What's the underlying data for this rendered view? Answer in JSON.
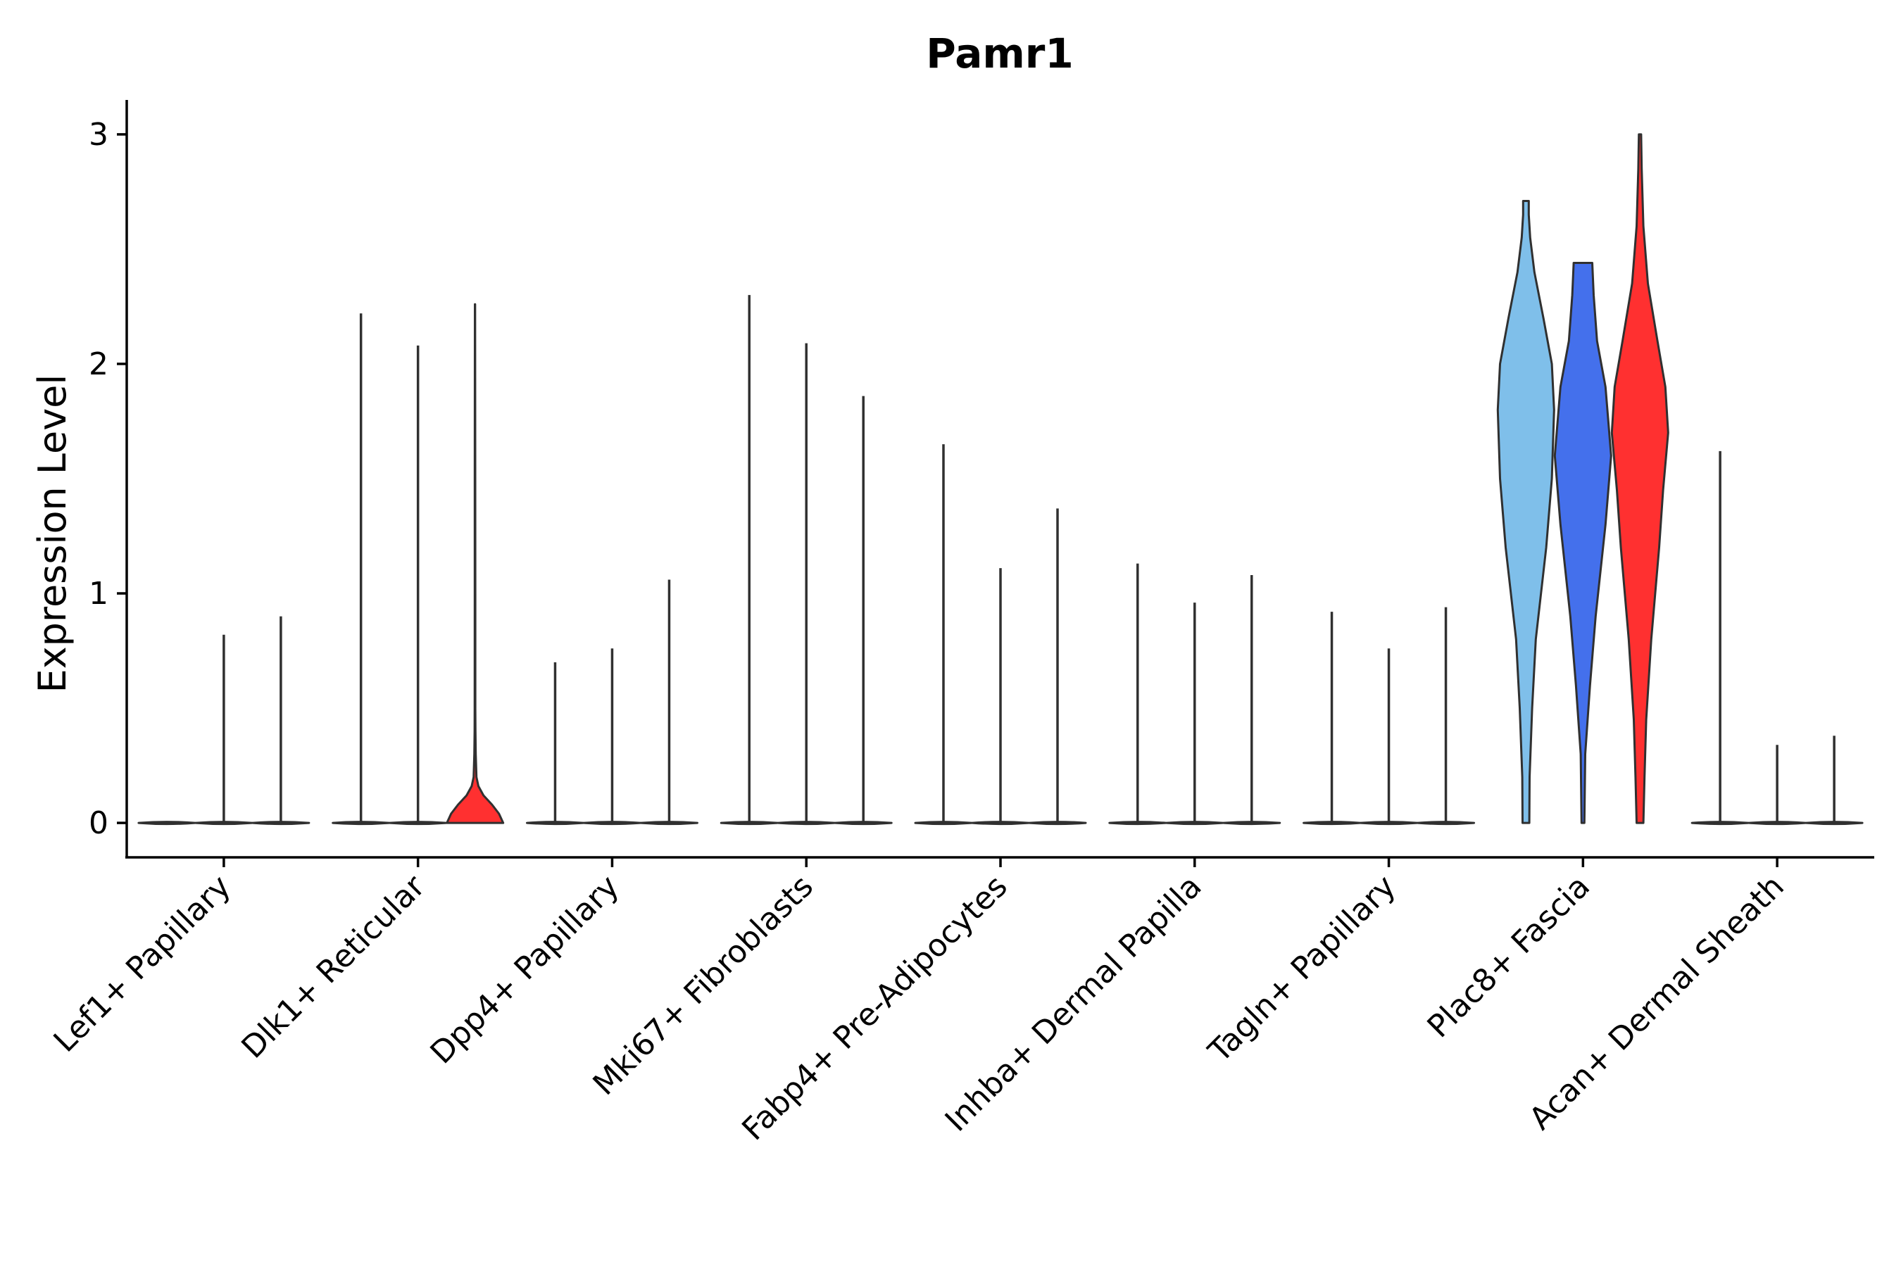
{
  "chart_data": {
    "type": "violin",
    "title": "Pamr1",
    "ylabel": "Expression Level",
    "xlabel": "",
    "ylim": [
      -0.15,
      3.15
    ],
    "yticks": [
      0,
      1,
      2,
      3
    ],
    "grid": false,
    "legend": "none",
    "categories": [
      "Lef1+ Papillary",
      "Dlk1+ Reticular",
      "Dpp4+ Papillary",
      "Mki67+ Fibroblasts",
      "Fabp4+ Pre-Adipocytes",
      "Inhba+ Dermal Papilla",
      "Tagln+ Papillary",
      "Plac8+ Fascia",
      "Acan+ Dermal Sheath"
    ],
    "groups_per_category": 3,
    "series": [
      {
        "color": "#7FBFEA",
        "max": [
          0.0,
          2.22,
          0.7,
          2.3,
          1.65,
          1.13,
          0.92,
          2.71,
          1.62
        ]
      },
      {
        "color": "#4470EC",
        "max": [
          0.82,
          2.08,
          0.76,
          2.09,
          1.11,
          0.96,
          0.76,
          2.44,
          0.34
        ]
      },
      {
        "color": "#FF3030",
        "max": [
          0.9,
          2.26,
          1.06,
          1.86,
          1.37,
          1.08,
          0.94,
          3.0,
          0.38
        ]
      }
    ],
    "distributions": {
      "Dlk1+ Reticular|3": [
        [
          0,
          1.0
        ],
        [
          0.04,
          0.85
        ],
        [
          0.08,
          0.6
        ],
        [
          0.12,
          0.3
        ],
        [
          0.16,
          0.12
        ],
        [
          0.2,
          0.05
        ],
        [
          0.3,
          0.025
        ],
        [
          0.4,
          0.015
        ],
        [
          0.5,
          0.012
        ],
        [
          1.0,
          0.01
        ],
        [
          1.5,
          0.008
        ],
        [
          2.26,
          0.004
        ]
      ],
      "Plac8+ Fascia|1": [
        [
          0,
          0.12
        ],
        [
          0.2,
          0.13
        ],
        [
          0.3,
          0.16
        ],
        [
          0.5,
          0.22
        ],
        [
          0.8,
          0.35
        ],
        [
          1.2,
          0.72
        ],
        [
          1.5,
          0.92
        ],
        [
          1.8,
          1.0
        ],
        [
          2.0,
          0.92
        ],
        [
          2.2,
          0.62
        ],
        [
          2.4,
          0.3
        ],
        [
          2.55,
          0.15
        ],
        [
          2.65,
          0.1
        ],
        [
          2.71,
          0.1
        ]
      ],
      "Plac8+ Fascia|2": [
        [
          0,
          0.05
        ],
        [
          0.3,
          0.08
        ],
        [
          0.6,
          0.25
        ],
        [
          0.9,
          0.45
        ],
        [
          1.3,
          0.8
        ],
        [
          1.6,
          1.0
        ],
        [
          1.9,
          0.8
        ],
        [
          2.1,
          0.5
        ],
        [
          2.3,
          0.38
        ],
        [
          2.44,
          0.33
        ]
      ],
      "Plac8+ Fascia|3": [
        [
          0,
          0.12
        ],
        [
          0.2,
          0.16
        ],
        [
          0.45,
          0.22
        ],
        [
          0.8,
          0.4
        ],
        [
          1.2,
          0.68
        ],
        [
          1.45,
          0.82
        ],
        [
          1.7,
          1.0
        ],
        [
          1.9,
          0.9
        ],
        [
          2.1,
          0.62
        ],
        [
          2.35,
          0.28
        ],
        [
          2.6,
          0.12
        ],
        [
          2.85,
          0.06
        ],
        [
          3.0,
          0.04
        ]
      ]
    }
  }
}
